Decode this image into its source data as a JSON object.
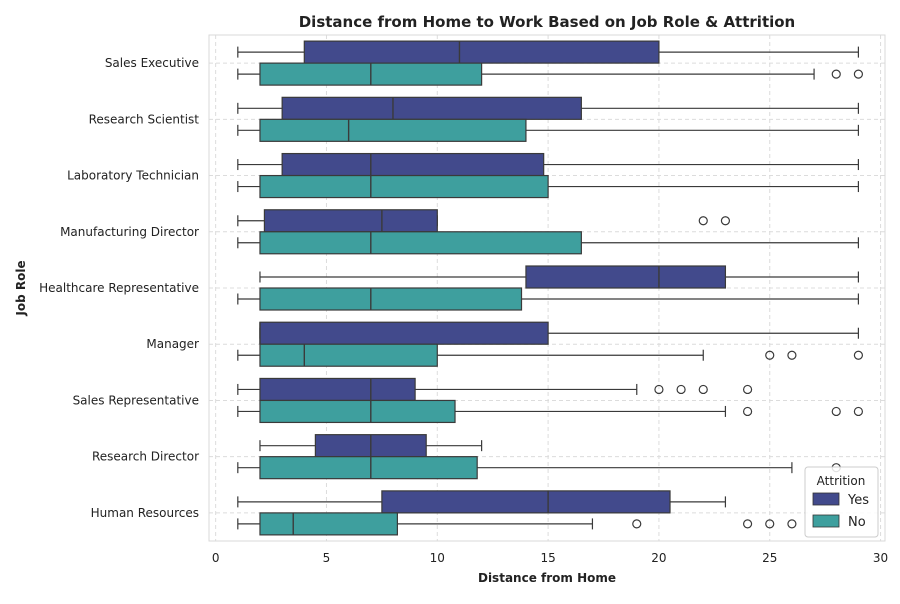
{
  "chart_data": {
    "type": "boxplot",
    "orientation": "horizontal",
    "title": "Distance from Home to Work Based on Job Role & Attrition",
    "xlabel": "Distance from Home",
    "ylabel": "Job Role",
    "xlim": [
      -0.3,
      30.2
    ],
    "xticks": [
      0,
      5,
      10,
      15,
      20,
      25,
      30
    ],
    "grid": true,
    "legend": {
      "title": "Attrition",
      "placement": "lower-right"
    },
    "categories": [
      "Sales Executive",
      "Research Scientist",
      "Laboratory Technician",
      "Manufacturing Director",
      "Healthcare Representative",
      "Manager",
      "Sales Representative",
      "Research Director",
      "Human Resources"
    ],
    "series": [
      {
        "name": "Yes",
        "color": "#424a8c",
        "boxes": [
          {
            "whislo": 1,
            "q1": 4,
            "med": 11,
            "q3": 20,
            "whishi": 29,
            "fliers": []
          },
          {
            "whislo": 1,
            "q1": 3,
            "med": 8,
            "q3": 16.5,
            "whishi": 29,
            "fliers": []
          },
          {
            "whislo": 1,
            "q1": 3,
            "med": 7,
            "q3": 14.8,
            "whishi": 29,
            "fliers": []
          },
          {
            "whislo": 1,
            "q1": 2.2,
            "med": 7.5,
            "q3": 10,
            "whishi": 10,
            "fliers": [
              22,
              23
            ]
          },
          {
            "whislo": 2,
            "q1": 14,
            "med": 20,
            "q3": 23,
            "whishi": 29,
            "fliers": []
          },
          {
            "whislo": 2,
            "q1": 2,
            "med": 2,
            "q3": 15,
            "whishi": 29,
            "fliers": []
          },
          {
            "whislo": 1,
            "q1": 2,
            "med": 7,
            "q3": 9,
            "whishi": 19,
            "fliers": [
              20,
              21,
              22,
              24
            ]
          },
          {
            "whislo": 2,
            "q1": 4.5,
            "med": 7,
            "q3": 9.5,
            "whishi": 12,
            "fliers": []
          },
          {
            "whislo": 1,
            "q1": 7.5,
            "med": 15,
            "q3": 20.5,
            "whishi": 23,
            "fliers": []
          }
        ]
      },
      {
        "name": "No",
        "color": "#3e9f9e",
        "boxes": [
          {
            "whislo": 1,
            "q1": 2,
            "med": 7,
            "q3": 12,
            "whishi": 27,
            "fliers": [
              28,
              29
            ]
          },
          {
            "whislo": 1,
            "q1": 2,
            "med": 6,
            "q3": 14,
            "whishi": 29,
            "fliers": []
          },
          {
            "whislo": 1,
            "q1": 2,
            "med": 7,
            "q3": 15,
            "whishi": 29,
            "fliers": []
          },
          {
            "whislo": 1,
            "q1": 2,
            "med": 7,
            "q3": 16.5,
            "whishi": 29,
            "fliers": []
          },
          {
            "whislo": 1,
            "q1": 2,
            "med": 7,
            "q3": 13.8,
            "whishi": 29,
            "fliers": []
          },
          {
            "whislo": 1,
            "q1": 2,
            "med": 4,
            "q3": 10,
            "whishi": 22,
            "fliers": [
              25,
              26,
              29
            ]
          },
          {
            "whislo": 1,
            "q1": 2,
            "med": 7,
            "q3": 10.8,
            "whishi": 23,
            "fliers": [
              24,
              28,
              29
            ]
          },
          {
            "whislo": 1,
            "q1": 2,
            "med": 7,
            "q3": 11.8,
            "whishi": 26,
            "fliers": [
              28
            ]
          },
          {
            "whislo": 1,
            "q1": 2,
            "med": 3.5,
            "q3": 8.2,
            "whishi": 17,
            "fliers": [
              19,
              24,
              25,
              26
            ]
          }
        ]
      }
    ]
  }
}
